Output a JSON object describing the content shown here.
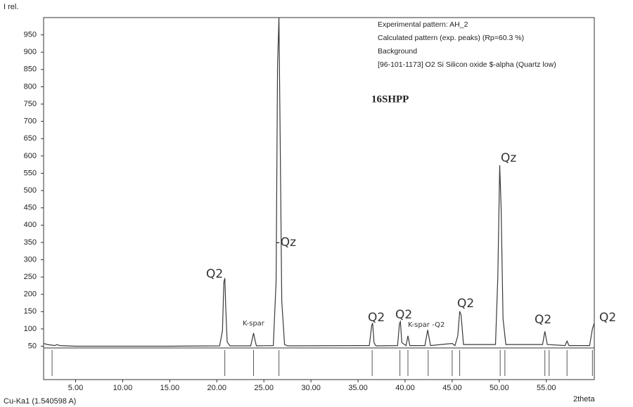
{
  "chart_data": {
    "type": "line",
    "y_label": "I rel.",
    "x_label": "2theta",
    "radiation": "Cu-Ka1 (1.540598 A)",
    "sample": "16SHPP",
    "series": [
      {
        "name": "Experimental pattern: AH_2",
        "color": "#3a3a3a",
        "x": [
          1.6,
          2.0,
          2.8,
          3.0,
          3.3,
          5,
          10,
          15,
          20.3,
          20.6,
          20.75,
          20.85,
          20.95,
          21.1,
          21.4,
          23.6,
          23.8,
          23.9,
          24.0,
          24.2,
          26.0,
          26.3,
          26.45,
          26.6,
          26.75,
          26.9,
          27.2,
          27.5,
          36.2,
          36.45,
          36.55,
          36.7,
          36.9,
          39.2,
          39.4,
          39.5,
          39.65,
          40.1,
          40.3,
          40.5,
          42.1,
          42.4,
          42.7,
          45.0,
          45.3,
          45.6,
          45.8,
          45.95,
          46.2,
          49.6,
          49.85,
          50.05,
          50.2,
          50.4,
          50.7,
          54.6,
          54.85,
          55.1,
          57.0,
          57.2,
          57.4,
          59.6,
          59.9,
          60.1
        ],
        "values": [
          58,
          55,
          52,
          55,
          52,
          50,
          50,
          50,
          51,
          95,
          235,
          247,
          160,
          62,
          51,
          51,
          75,
          88,
          75,
          51,
          52,
          240,
          860,
          1000,
          600,
          180,
          55,
          51,
          52,
          110,
          117,
          60,
          51,
          52,
          115,
          121,
          60,
          52,
          80,
          52,
          52,
          97,
          52,
          58,
          52,
          80,
          151,
          140,
          55,
          55,
          250,
          573,
          450,
          130,
          55,
          55,
          93,
          55,
          52,
          65,
          52,
          52,
          100,
          117
        ]
      }
    ],
    "legend_entries": [
      {
        "name": "Calculated pattern (exp. peaks) (Rp=60.3 %)",
        "color": "#333333"
      },
      {
        "name": "Background",
        "color": "#999999"
      }
    ],
    "reference": {
      "name": "[96-101-1173] O2 Si Silicon oxide $-alpha (Quartz low)",
      "color": "#555555",
      "positions": [
        2.5,
        20.85,
        23.9,
        26.6,
        36.5,
        39.45,
        40.3,
        42.45,
        45.0,
        45.8,
        50.1,
        50.6,
        54.85,
        55.3,
        57.2,
        59.9
      ]
    },
    "annotations": [
      "Q2",
      "K-spar",
      "-Qz",
      "Q2",
      "Q2",
      "K-spar -Q2",
      "Q2",
      "Qz",
      "Q2",
      "Q2"
    ],
    "xlim": [
      1.6,
      60.1
    ],
    "ylim": [
      45,
      1000
    ],
    "xticks": [
      {
        "value": 5,
        "label": "5.00"
      },
      {
        "value": 10,
        "label": "10.00"
      },
      {
        "value": 15,
        "label": "15.00"
      },
      {
        "value": 20,
        "label": "20.00"
      },
      {
        "value": 25,
        "label": "25.00"
      },
      {
        "value": 30,
        "label": "30.00"
      },
      {
        "value": 35,
        "label": "35.00"
      },
      {
        "value": 40,
        "label": "40.00"
      },
      {
        "value": 45,
        "label": "45.00"
      },
      {
        "value": 50,
        "label": "50.00"
      },
      {
        "value": 55,
        "label": "55.00"
      }
    ],
    "yticks": [
      50,
      100,
      150,
      200,
      250,
      300,
      350,
      400,
      450,
      500,
      550,
      600,
      650,
      700,
      750,
      800,
      850,
      900,
      950
    ],
    "grid": false
  }
}
